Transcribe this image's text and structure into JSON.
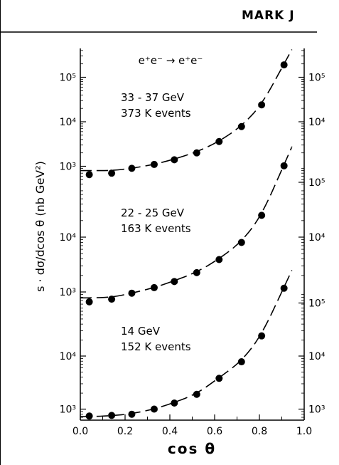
{
  "chart_data": {
    "type": "scatter",
    "title": "MARK J",
    "subtitle": "e⁺e⁻ → e⁺e⁻",
    "xlabel": "cos θ",
    "ylabel": "s · dσ/dcos θ (nb GeV²)",
    "xlim": [
      0.0,
      1.0
    ],
    "xticks": [
      "0.0",
      "0.2",
      "0.4",
      "0.6",
      "0.8",
      "1.0"
    ],
    "y_scale": "log",
    "grid": false,
    "panels": [
      {
        "label_energy": "33 - 37 GeV",
        "label_events": "373 K events",
        "ylim": [
          500,
          300000
        ],
        "left_ticks": [
          {
            "value": 1000,
            "label": "10³"
          },
          {
            "value": 10000,
            "label": "10⁴"
          },
          {
            "value": 100000,
            "label": "10⁵"
          }
        ],
        "right_ticks": [
          {
            "value": 10000,
            "label": "10⁴"
          },
          {
            "value": 100000,
            "label": "10⁵"
          }
        ],
        "x": [
          0.04,
          0.14,
          0.23,
          0.33,
          0.42,
          0.52,
          0.62,
          0.72,
          0.81,
          0.91
        ],
        "y": [
          650,
          700,
          900,
          1100,
          1400,
          2000,
          3600,
          7800,
          24000,
          190000
        ],
        "fit": [
          800,
          800,
          900,
          1100,
          1450,
          2100,
          3600,
          8000,
          24000,
          200000
        ]
      },
      {
        "label_energy": "22 - 25 GeV",
        "label_events": "163 K events",
        "ylim": [
          500,
          300000
        ],
        "left_ticks": [
          {
            "value": 1000,
            "label": "10³"
          },
          {
            "value": 10000,
            "label": "10⁴"
          }
        ],
        "right_ticks": [
          {
            "value": 10000,
            "label": "10⁴"
          },
          {
            "value": 100000,
            "label": "10⁵"
          }
        ],
        "x": [
          0.04,
          0.14,
          0.23,
          0.33,
          0.42,
          0.52,
          0.62,
          0.72,
          0.81,
          0.91
        ],
        "y": [
          660,
          740,
          950,
          1200,
          1550,
          2250,
          3900,
          8000,
          25000,
          200000
        ],
        "fit": [
          780,
          800,
          950,
          1200,
          1600,
          2300,
          4000,
          8200,
          25000,
          210000
        ]
      },
      {
        "label_energy": "14 GeV",
        "label_events": "152 K events",
        "ylim": [
          500,
          300000
        ],
        "left_ticks": [
          {
            "value": 1000,
            "label": "10³"
          },
          {
            "value": 10000,
            "label": "10⁴"
          }
        ],
        "right_ticks": [
          {
            "value": 1000,
            "label": "10³"
          },
          {
            "value": 10000,
            "label": "10⁴"
          },
          {
            "value": 100000,
            "label": "10⁵"
          }
        ],
        "x": [
          0.04,
          0.14,
          0.23,
          0.33,
          0.42,
          0.52,
          0.62,
          0.72,
          0.81,
          0.91
        ],
        "y": [
          740,
          760,
          800,
          1000,
          1300,
          1900,
          3800,
          7800,
          24000,
          190000
        ],
        "fit": [
          720,
          750,
          820,
          1000,
          1330,
          1950,
          3900,
          8000,
          25000,
          200000
        ]
      }
    ]
  }
}
